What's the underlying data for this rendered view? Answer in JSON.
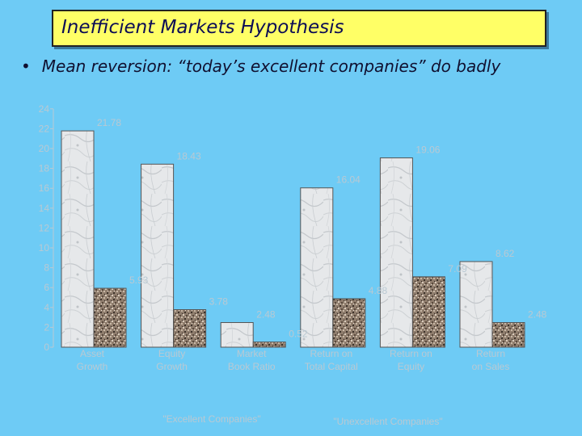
{
  "slide": {
    "title": "Inefficient Markets Hypothesis",
    "bullet": "Mean reversion: “today’s excellent companies” do badly"
  },
  "colors": {
    "background": "#6ecbf5",
    "title_box": "#ffff66",
    "excellent_bar": "#e4e6e8",
    "unexcellent_bar": "#8c7a6a",
    "label_text": "#b9c9d3"
  },
  "chart_data": {
    "type": "bar",
    "categories": [
      [
        "Asset",
        "Growth"
      ],
      [
        "Equity",
        "Growth"
      ],
      [
        "Market",
        "Book Ratio"
      ],
      [
        "Return on",
        "Total Capital"
      ],
      [
        "Return on",
        "Equity"
      ],
      [
        "Return",
        "on Sales"
      ]
    ],
    "series": [
      {
        "name": "\"Excellent Companies\"",
        "values": [
          21.78,
          18.43,
          2.48,
          16.04,
          19.06,
          8.62
        ],
        "labels": [
          "21.78",
          "18.43",
          "2.48",
          "16.04",
          "19.06",
          "8.62"
        ]
      },
      {
        "name": "\"Unexcellent Companies\"",
        "values": [
          5.93,
          3.78,
          0.52,
          4.88,
          7.09,
          2.48
        ],
        "labels": [
          "5.93",
          "3.78",
          "0.52",
          "4.88",
          "7.09",
          "2.48"
        ]
      }
    ],
    "y_ticks": [
      "0",
      "2",
      "4",
      "6",
      "8",
      "10",
      "12",
      "14",
      "16",
      "18",
      "20",
      "22",
      "24"
    ],
    "ylim": [
      0,
      24
    ],
    "grid": false,
    "legend": "bottom"
  }
}
